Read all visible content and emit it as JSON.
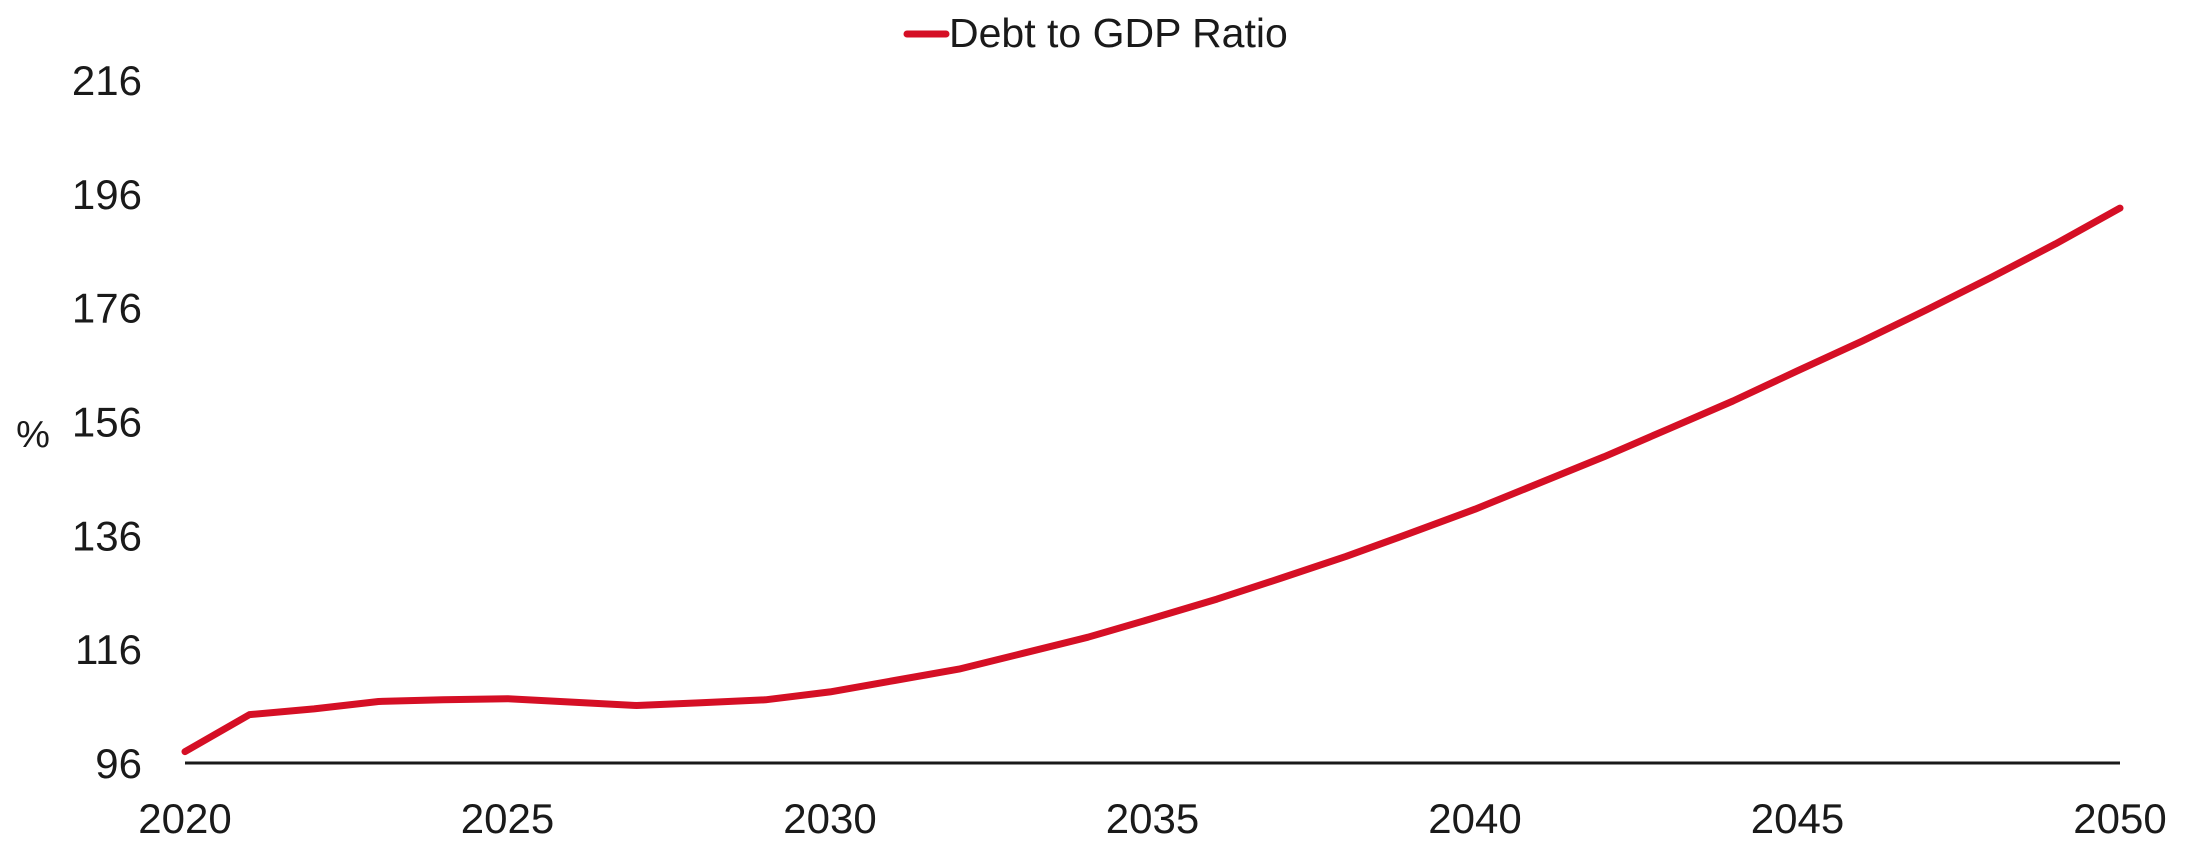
{
  "chart_data": {
    "type": "line",
    "title": "",
    "xlabel": "",
    "ylabel": "%",
    "xlim": [
      2020,
      2050
    ],
    "ylim": [
      96,
      216
    ],
    "x_ticks": [
      "2020",
      "2025",
      "2030",
      "2035",
      "2040",
      "2045",
      "2050"
    ],
    "y_ticks": [
      "96",
      "116",
      "136",
      "156",
      "176",
      "196",
      "216"
    ],
    "grid": false,
    "legend_position": "top-center",
    "series": [
      {
        "name": "Debt to GDP Ratio",
        "color": "#d50f25",
        "x": [
          2020,
          2021,
          2022,
          2023,
          2024,
          2025,
          2026,
          2027,
          2028,
          2029,
          2030,
          2031,
          2032,
          2033,
          2034,
          2035,
          2036,
          2037,
          2038,
          2039,
          2040,
          2041,
          2042,
          2043,
          2044,
          2045,
          2046,
          2047,
          2048,
          2049,
          2050
        ],
        "values": [
          98,
          104.5,
          105.5,
          106.8,
          107.1,
          107.3,
          106.7,
          106.1,
          106.6,
          107.1,
          108.5,
          110.5,
          112.5,
          115.3,
          118.1,
          121.4,
          124.8,
          128.5,
          132.3,
          136.4,
          140.6,
          145.2,
          149.8,
          154.7,
          159.6,
          164.9,
          170.1,
          175.6,
          181.3,
          187.2,
          193.5
        ]
      }
    ]
  }
}
